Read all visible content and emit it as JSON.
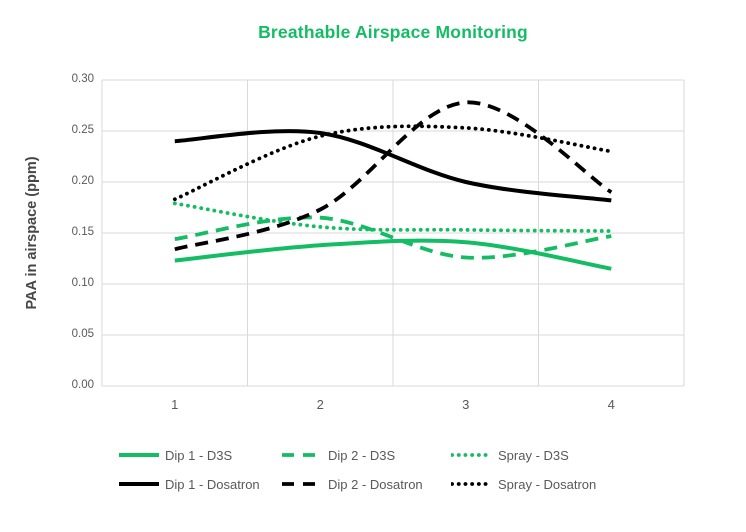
{
  "chart_data": {
    "type": "line",
    "title": "Breathable Airspace Monitoring",
    "xlabel": "",
    "ylabel": "PAA in airspace (ppm)",
    "categories": [
      "1",
      "2",
      "3",
      "4"
    ],
    "y_ticks": [
      "0.00",
      "0.05",
      "0.10",
      "0.15",
      "0.20",
      "0.25",
      "0.30"
    ],
    "ylim": [
      0.0,
      0.3
    ],
    "y_step": 0.05,
    "grid": true,
    "legend_position": "bottom",
    "series": [
      {
        "name": "Dip 1 - D3S",
        "color": "#14BC64",
        "style": "solid",
        "values": [
          0.123,
          0.138,
          0.141,
          0.115
        ]
      },
      {
        "name": "Dip 2 - D3S",
        "color": "#14BC64",
        "style": "dashed",
        "values": [
          0.144,
          0.165,
          0.126,
          0.147
        ]
      },
      {
        "name": "Spray - D3S",
        "color": "#14BC64",
        "style": "dotted",
        "values": [
          0.179,
          0.156,
          0.153,
          0.152
        ]
      },
      {
        "name": "Dip 1  - Dosatron",
        "color": "#000000",
        "style": "solid",
        "values": [
          0.24,
          0.248,
          0.2,
          0.182
        ]
      },
      {
        "name": "Dip 2 - Dosatron",
        "color": "#000000",
        "style": "dashed",
        "values": [
          0.134,
          0.173,
          0.278,
          0.19
        ]
      },
      {
        "name": "Spray - Dosatron",
        "color": "#000000",
        "style": "dotted",
        "values": [
          0.183,
          0.245,
          0.253,
          0.23
        ]
      }
    ]
  },
  "colors": {
    "title": "#14BC64",
    "gridline": "#D9D9D9",
    "tick_text": "#595959",
    "axis_title_text": "#474747"
  }
}
